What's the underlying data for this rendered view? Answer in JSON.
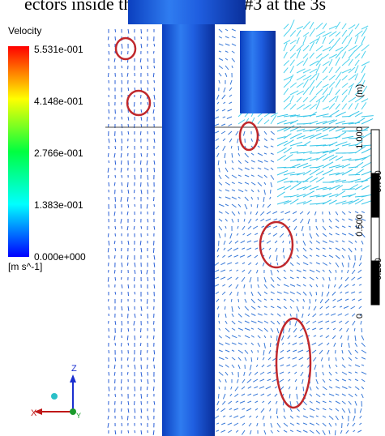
{
  "caption": "ectors inside the pool of Mesh #3 at the 3s",
  "legend": {
    "title": "Velocity",
    "ticks": [
      "5.531e-001",
      "4.148e-001",
      "2.766e-001",
      "1.383e-001",
      "0.000e+000"
    ],
    "unit": "[m s^-1]"
  },
  "scale": {
    "labels": [
      "1.000",
      "0.750",
      "0.500",
      "0.250",
      "0"
    ],
    "unit": "(m)"
  },
  "axes": {
    "z": "Z",
    "x": "X",
    "y": "Y"
  }
}
